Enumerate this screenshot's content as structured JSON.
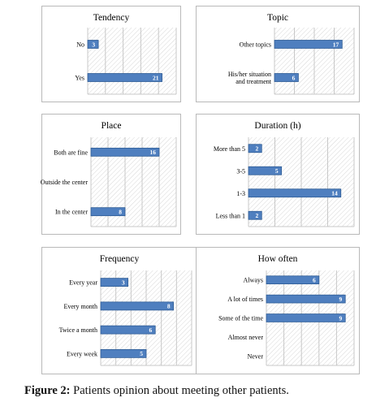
{
  "colors": {
    "bar_fill": "#4f7fbf",
    "bar_stroke": "#2e5c95",
    "grid": "#c8c8c8",
    "hatch": "#d7d7d7"
  },
  "chart_data": [
    {
      "type": "bar",
      "orientation": "horizontal",
      "title": "Tendency",
      "categories": [
        "No",
        "Yes"
      ],
      "values": [
        3,
        21
      ],
      "xlim": [
        0,
        25
      ],
      "grid": true
    },
    {
      "type": "bar",
      "orientation": "horizontal",
      "title": "Topic",
      "categories": [
        "Other topics",
        "His/her situation and treatment"
      ],
      "values": [
        17,
        6
      ],
      "xlim": [
        0,
        20
      ],
      "grid": true
    },
    {
      "type": "bar",
      "orientation": "horizontal",
      "title": "Place",
      "categories": [
        "Both are fine",
        "Outside the center",
        "In the center"
      ],
      "values": [
        16,
        0,
        8
      ],
      "xlim": [
        0,
        20
      ],
      "grid": true
    },
    {
      "type": "bar",
      "orientation": "horizontal",
      "title": "Duration (h)",
      "categories": [
        "More than 5",
        "3-5",
        "1-3",
        "Less than 1"
      ],
      "values": [
        2,
        5,
        14,
        2
      ],
      "xlim": [
        0,
        16
      ],
      "grid": true
    },
    {
      "type": "bar",
      "orientation": "horizontal",
      "title": "Frequency",
      "categories": [
        "Every year",
        "Every month",
        "Twice a month",
        "Every week"
      ],
      "values": [
        3,
        8,
        6,
        5
      ],
      "xlim": [
        0,
        10
      ],
      "grid": true
    },
    {
      "type": "bar",
      "orientation": "horizontal",
      "title": "How often",
      "categories": [
        "Always",
        "A lot of times",
        "Some of the time",
        "Almost never",
        "Never"
      ],
      "values": [
        6,
        9,
        9,
        0,
        0
      ],
      "xlim": [
        0,
        10
      ],
      "grid": true
    }
  ],
  "caption": {
    "prefix": "Figure 2:",
    "text": " Patients opinion about meeting other patients."
  }
}
